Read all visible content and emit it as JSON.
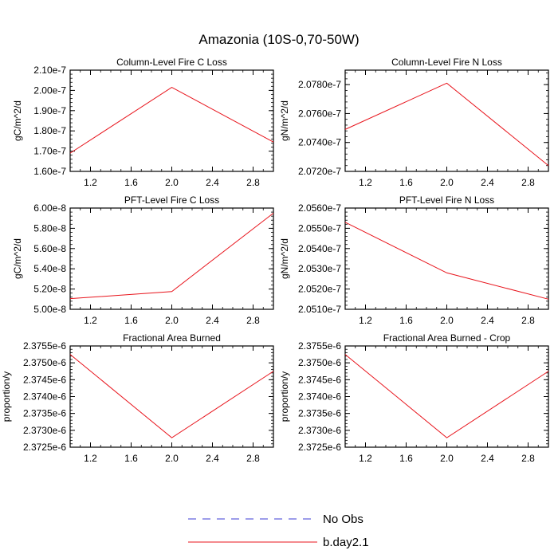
{
  "main_title": "Amazonia (10S-0,70-50W)",
  "legend": [
    {
      "label": "No Obs",
      "color": "#3b3bd6",
      "dash": true
    },
    {
      "label": "b.day2.1",
      "color": "#e8141c",
      "dash": false
    }
  ],
  "chart_data": [
    {
      "type": "line",
      "title": "Column-Level Fire C Loss",
      "ylabel": "gC/m^2/d",
      "xlim": [
        1.0,
        3.0
      ],
      "ylim": [
        1.6e-07,
        2.1e-07
      ],
      "xticks": [
        "1.2",
        "1.6",
        "2.0",
        "2.4",
        "2.8"
      ],
      "yticks": [
        "1.60e-7",
        "1.70e-7",
        "1.80e-7",
        "1.90e-7",
        "2.00e-7",
        "2.10e-7"
      ],
      "series": [
        {
          "name": "b.day2.1",
          "x": [
            1,
            2,
            3
          ],
          "y": [
            1.69e-07,
            2.015e-07,
            1.745e-07
          ]
        }
      ]
    },
    {
      "type": "line",
      "title": "Column-Level Fire N Loss",
      "ylabel": "gN/m^2/d",
      "xlim": [
        1.0,
        3.0
      ],
      "ylim": [
        2.072e-07,
        2.079e-07
      ],
      "xticks": [
        "1.2",
        "1.6",
        "2.0",
        "2.4",
        "2.8"
      ],
      "yticks": [
        "2.0720e-7",
        "2.0740e-7",
        "2.0760e-7",
        "2.0780e-7"
      ],
      "series": [
        {
          "name": "b.day2.1",
          "x": [
            1,
            2,
            3
          ],
          "y": [
            2.0749e-07,
            2.0781e-07,
            2.0724e-07
          ]
        }
      ]
    },
    {
      "type": "line",
      "title": "PFT-Level Fire C Loss",
      "ylabel": "gC/m^2/d",
      "xlim": [
        1.0,
        3.0
      ],
      "ylim": [
        5e-08,
        6e-08
      ],
      "xticks": [
        "1.2",
        "1.6",
        "2.0",
        "2.4",
        "2.8"
      ],
      "yticks": [
        "5.00e-8",
        "5.20e-8",
        "5.40e-8",
        "5.60e-8",
        "5.80e-8",
        "6.00e-8"
      ],
      "series": [
        {
          "name": "b.day2.1",
          "x": [
            1,
            2,
            3
          ],
          "y": [
            5.105e-08,
            5.175e-08,
            5.95e-08
          ]
        }
      ]
    },
    {
      "type": "line",
      "title": "PFT-Level Fire N Loss",
      "ylabel": "gN/m^2/d",
      "xlim": [
        1.0,
        3.0
      ],
      "ylim": [
        2.051e-07,
        2.056e-07
      ],
      "xticks": [
        "1.2",
        "1.6",
        "2.0",
        "2.4",
        "2.8"
      ],
      "yticks": [
        "2.0510e-7",
        "2.0520e-7",
        "2.0530e-7",
        "2.0540e-7",
        "2.0550e-7",
        "2.0560e-7"
      ],
      "series": [
        {
          "name": "b.day2.1",
          "x": [
            1,
            2,
            3
          ],
          "y": [
            2.0553e-07,
            2.0528e-07,
            2.0515e-07
          ]
        }
      ]
    },
    {
      "type": "line",
      "title": "Fractional Area Burned",
      "ylabel": "proportion/y",
      "xlim": [
        1.0,
        3.0
      ],
      "ylim": [
        2.3725e-06,
        2.3755e-06
      ],
      "xticks": [
        "1.2",
        "1.6",
        "2.0",
        "2.4",
        "2.8"
      ],
      "yticks": [
        "2.3725e-6",
        "2.3730e-6",
        "2.3735e-6",
        "2.3740e-6",
        "2.3745e-6",
        "2.3750e-6",
        "2.3755e-6"
      ],
      "series": [
        {
          "name": "b.day2.1",
          "x": [
            1,
            2,
            3
          ],
          "y": [
            2.37525e-06,
            2.37278e-06,
            2.37475e-06
          ]
        }
      ]
    },
    {
      "type": "line",
      "title": "Fractional Area Burned - Crop",
      "ylabel": "proportion/y",
      "xlim": [
        1.0,
        3.0
      ],
      "ylim": [
        2.3725e-06,
        2.3755e-06
      ],
      "xticks": [
        "1.2",
        "1.6",
        "2.0",
        "2.4",
        "2.8"
      ],
      "yticks": [
        "2.3725e-6",
        "2.3730e-6",
        "2.3735e-6",
        "2.3740e-6",
        "2.3745e-6",
        "2.3750e-6",
        "2.3755e-6"
      ],
      "series": [
        {
          "name": "b.day2.1",
          "x": [
            1,
            2,
            3
          ],
          "y": [
            2.37525e-06,
            2.37278e-06,
            2.37475e-06
          ]
        }
      ]
    }
  ]
}
